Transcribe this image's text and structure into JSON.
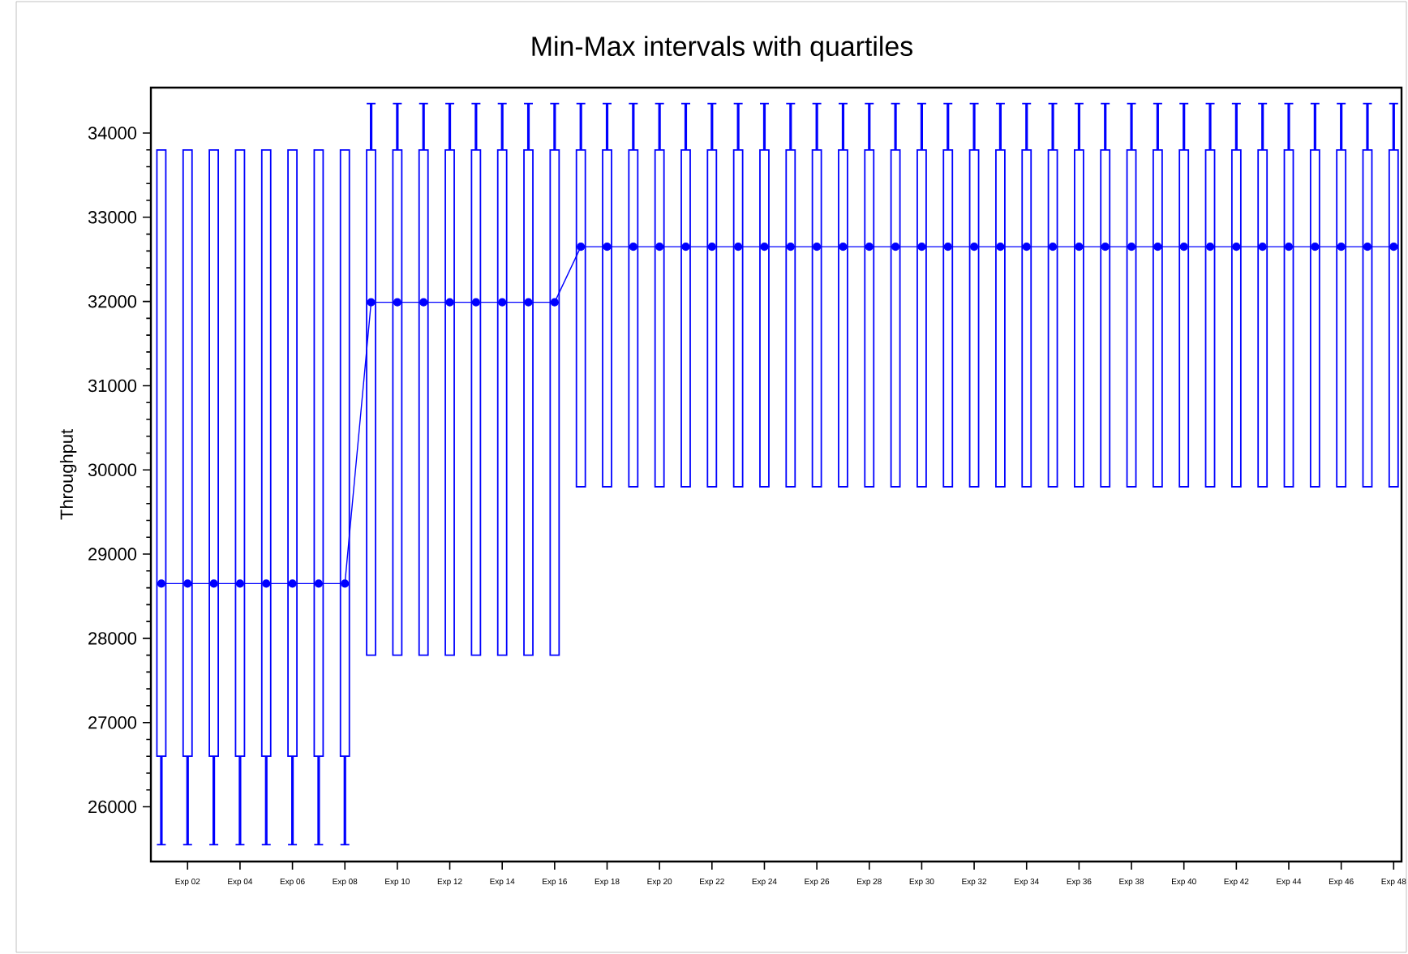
{
  "chart_data": {
    "type": "box",
    "title": "Min-Max intervals with quartiles",
    "ylabel": "Throughput",
    "color": "#0000ff",
    "marker": "circle",
    "categories": [
      null,
      "Exp 02",
      null,
      "Exp 04",
      null,
      "Exp 06",
      null,
      "Exp 08",
      null,
      "Exp 10",
      null,
      "Exp 12",
      null,
      "Exp 14",
      null,
      "Exp 16",
      null,
      "Exp 18",
      null,
      "Exp 20",
      null,
      "Exp 22",
      null,
      "Exp 24",
      null,
      "Exp 26",
      null,
      "Exp 28",
      null,
      "Exp 30",
      null,
      "Exp 32",
      null,
      "Exp 34",
      null,
      "Exp 36",
      null,
      "Exp 38",
      null,
      "Exp 40",
      null,
      "Exp 42",
      null,
      "Exp 44",
      null,
      "Exp 46",
      null,
      "Exp 48"
    ],
    "boxes": [
      {
        "low": 25550,
        "q1": 26600,
        "median": 28650,
        "q3": 33800,
        "high": 33800
      },
      {
        "low": 25550,
        "q1": 26600,
        "median": 28650,
        "q3": 33800,
        "high": 33800
      },
      {
        "low": 25550,
        "q1": 26600,
        "median": 28650,
        "q3": 33800,
        "high": 33800
      },
      {
        "low": 25550,
        "q1": 26600,
        "median": 28650,
        "q3": 33800,
        "high": 33800
      },
      {
        "low": 25550,
        "q1": 26600,
        "median": 28650,
        "q3": 33800,
        "high": 33800
      },
      {
        "low": 25550,
        "q1": 26600,
        "median": 28650,
        "q3": 33800,
        "high": 33800
      },
      {
        "low": 25550,
        "q1": 26600,
        "median": 28650,
        "q3": 33800,
        "high": 33800
      },
      {
        "low": 25550,
        "q1": 26600,
        "median": 28650,
        "q3": 33800,
        "high": 33800
      },
      {
        "low": 27800,
        "q1": 27800,
        "median": 31990,
        "q3": 33800,
        "high": 34350
      },
      {
        "low": 27800,
        "q1": 27800,
        "median": 31990,
        "q3": 33800,
        "high": 34350
      },
      {
        "low": 27800,
        "q1": 27800,
        "median": 31990,
        "q3": 33800,
        "high": 34350
      },
      {
        "low": 27800,
        "q1": 27800,
        "median": 31990,
        "q3": 33800,
        "high": 34350
      },
      {
        "low": 27800,
        "q1": 27800,
        "median": 31990,
        "q3": 33800,
        "high": 34350
      },
      {
        "low": 27800,
        "q1": 27800,
        "median": 31990,
        "q3": 33800,
        "high": 34350
      },
      {
        "low": 27800,
        "q1": 27800,
        "median": 31990,
        "q3": 33800,
        "high": 34350
      },
      {
        "low": 27800,
        "q1": 27800,
        "median": 31990,
        "q3": 33800,
        "high": 34350
      },
      {
        "low": 29800,
        "q1": 29800,
        "median": 32650,
        "q3": 33800,
        "high": 34350
      },
      {
        "low": 29800,
        "q1": 29800,
        "median": 32650,
        "q3": 33800,
        "high": 34350
      },
      {
        "low": 29800,
        "q1": 29800,
        "median": 32650,
        "q3": 33800,
        "high": 34350
      },
      {
        "low": 29800,
        "q1": 29800,
        "median": 32650,
        "q3": 33800,
        "high": 34350
      },
      {
        "low": 29800,
        "q1": 29800,
        "median": 32650,
        "q3": 33800,
        "high": 34350
      },
      {
        "low": 29800,
        "q1": 29800,
        "median": 32650,
        "q3": 33800,
        "high": 34350
      },
      {
        "low": 29800,
        "q1": 29800,
        "median": 32650,
        "q3": 33800,
        "high": 34350
      },
      {
        "low": 29800,
        "q1": 29800,
        "median": 32650,
        "q3": 33800,
        "high": 34350
      },
      {
        "low": 29800,
        "q1": 29800,
        "median": 32650,
        "q3": 33800,
        "high": 34350
      },
      {
        "low": 29800,
        "q1": 29800,
        "median": 32650,
        "q3": 33800,
        "high": 34350
      },
      {
        "low": 29800,
        "q1": 29800,
        "median": 32650,
        "q3": 33800,
        "high": 34350
      },
      {
        "low": 29800,
        "q1": 29800,
        "median": 32650,
        "q3": 33800,
        "high": 34350
      },
      {
        "low": 29800,
        "q1": 29800,
        "median": 32650,
        "q3": 33800,
        "high": 34350
      },
      {
        "low": 29800,
        "q1": 29800,
        "median": 32650,
        "q3": 33800,
        "high": 34350
      },
      {
        "low": 29800,
        "q1": 29800,
        "median": 32650,
        "q3": 33800,
        "high": 34350
      },
      {
        "low": 29800,
        "q1": 29800,
        "median": 32650,
        "q3": 33800,
        "high": 34350
      },
      {
        "low": 29800,
        "q1": 29800,
        "median": 32650,
        "q3": 33800,
        "high": 34350
      },
      {
        "low": 29800,
        "q1": 29800,
        "median": 32650,
        "q3": 33800,
        "high": 34350
      },
      {
        "low": 29800,
        "q1": 29800,
        "median": 32650,
        "q3": 33800,
        "high": 34350
      },
      {
        "low": 29800,
        "q1": 29800,
        "median": 32650,
        "q3": 33800,
        "high": 34350
      },
      {
        "low": 29800,
        "q1": 29800,
        "median": 32650,
        "q3": 33800,
        "high": 34350
      },
      {
        "low": 29800,
        "q1": 29800,
        "median": 32650,
        "q3": 33800,
        "high": 34350
      },
      {
        "low": 29800,
        "q1": 29800,
        "median": 32650,
        "q3": 33800,
        "high": 34350
      },
      {
        "low": 29800,
        "q1": 29800,
        "median": 32650,
        "q3": 33800,
        "high": 34350
      },
      {
        "low": 29800,
        "q1": 29800,
        "median": 32650,
        "q3": 33800,
        "high": 34350
      },
      {
        "low": 29800,
        "q1": 29800,
        "median": 32650,
        "q3": 33800,
        "high": 34350
      },
      {
        "low": 29800,
        "q1": 29800,
        "median": 32650,
        "q3": 33800,
        "high": 34350
      },
      {
        "low": 29800,
        "q1": 29800,
        "median": 32650,
        "q3": 33800,
        "high": 34350
      },
      {
        "low": 29800,
        "q1": 29800,
        "median": 32650,
        "q3": 33800,
        "high": 34350
      },
      {
        "low": 29800,
        "q1": 29800,
        "median": 32650,
        "q3": 33800,
        "high": 34350
      },
      {
        "low": 29800,
        "q1": 29800,
        "median": 32650,
        "q3": 33800,
        "high": 34350
      },
      {
        "low": 29800,
        "q1": 29800,
        "median": 32650,
        "q3": 33800,
        "high": 34350
      }
    ],
    "series": [
      {
        "type": "line",
        "color": "#0000ff",
        "values": [
          28650,
          28650,
          28650,
          28650,
          28650,
          28650,
          28650,
          28650,
          31990,
          31990,
          31990,
          31990,
          31990,
          31990,
          31990,
          31990,
          32650,
          32650,
          32650,
          32650,
          32650,
          32650,
          32650,
          32650,
          32650,
          32650,
          32650,
          32650,
          32650,
          32650,
          32650,
          32650,
          32650,
          32650,
          32650,
          32650,
          32650,
          32650,
          32650,
          32650,
          32650,
          32650,
          32650,
          32650,
          32650,
          32650,
          32650,
          32650
        ]
      }
    ],
    "ylim": [
      25350,
      34540
    ],
    "yticks": [
      26000,
      27000,
      28000,
      29000,
      30000,
      31000,
      32000,
      33000,
      34000
    ]
  }
}
